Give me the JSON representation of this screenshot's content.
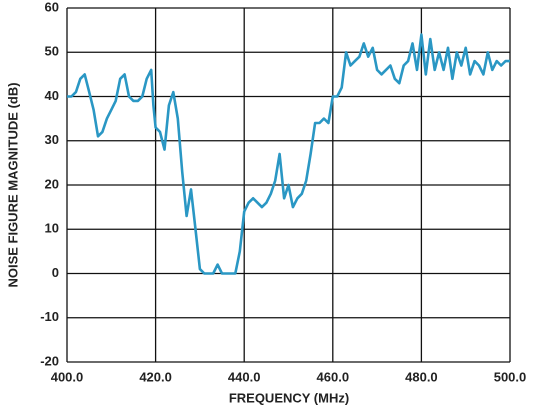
{
  "chart_data": {
    "type": "line",
    "x_label": "FREQUENCY (MHz)",
    "y_label": "NOISE FIGURE MAGNITUDE (dB)",
    "x": [
      400,
      401,
      402,
      403,
      404,
      405,
      406,
      407,
      408,
      409,
      410,
      411,
      412,
      413,
      414,
      415,
      416,
      417,
      418,
      419,
      419.5,
      420,
      421,
      422,
      423,
      424,
      425,
      426,
      427,
      428,
      429,
      430,
      431,
      432,
      433,
      434,
      435,
      436,
      437,
      438,
      439,
      440,
      441,
      442,
      443,
      444,
      445,
      446,
      447,
      448,
      449,
      450,
      451,
      452,
      453,
      454,
      455,
      456,
      457,
      458,
      459,
      460,
      461,
      462,
      463,
      464,
      465,
      466,
      467,
      468,
      469,
      470,
      471,
      472,
      473,
      474,
      475,
      476,
      477,
      478,
      479,
      480,
      481,
      482,
      483,
      484,
      485,
      486,
      487,
      488,
      489,
      490,
      491,
      492,
      493,
      494,
      495,
      496,
      497,
      498,
      499,
      500
    ],
    "values": [
      40,
      40,
      41,
      44,
      45,
      41,
      37,
      31,
      32,
      35,
      37,
      39,
      44,
      45,
      40,
      39,
      39,
      40,
      44,
      46,
      38,
      33,
      32,
      28,
      38,
      41,
      35,
      23,
      13,
      19,
      10,
      1,
      0,
      0,
      0,
      2,
      0,
      0,
      0,
      0,
      5,
      14,
      16,
      17,
      16,
      15,
      16,
      18,
      21,
      27,
      17,
      20,
      15,
      17,
      18,
      21,
      27,
      34,
      34,
      35,
      34,
      40,
      40,
      42,
      50,
      47,
      48,
      49,
      52,
      49,
      51,
      46,
      45,
      46,
      47,
      44,
      43,
      47,
      48,
      52,
      46,
      54,
      45,
      53,
      46,
      50,
      46,
      51,
      44,
      50,
      47,
      51,
      45,
      48,
      47,
      45,
      50,
      46,
      48,
      47,
      48,
      48
    ],
    "color": "#2a97c4",
    "xlim": [
      400,
      500
    ],
    "xticks": [
      {
        "value": 400,
        "label": "400.0"
      },
      {
        "value": 420,
        "label": "420.0"
      },
      {
        "value": 440,
        "label": "440.0"
      },
      {
        "value": 460,
        "label": "460.0"
      },
      {
        "value": 480,
        "label": "480.0"
      },
      {
        "value": 500,
        "label": "500.0"
      }
    ],
    "ylim": [
      -20,
      60
    ],
    "yticks": [
      -20,
      -10,
      0,
      10,
      20,
      30,
      40,
      50,
      60
    ],
    "grid": true
  }
}
